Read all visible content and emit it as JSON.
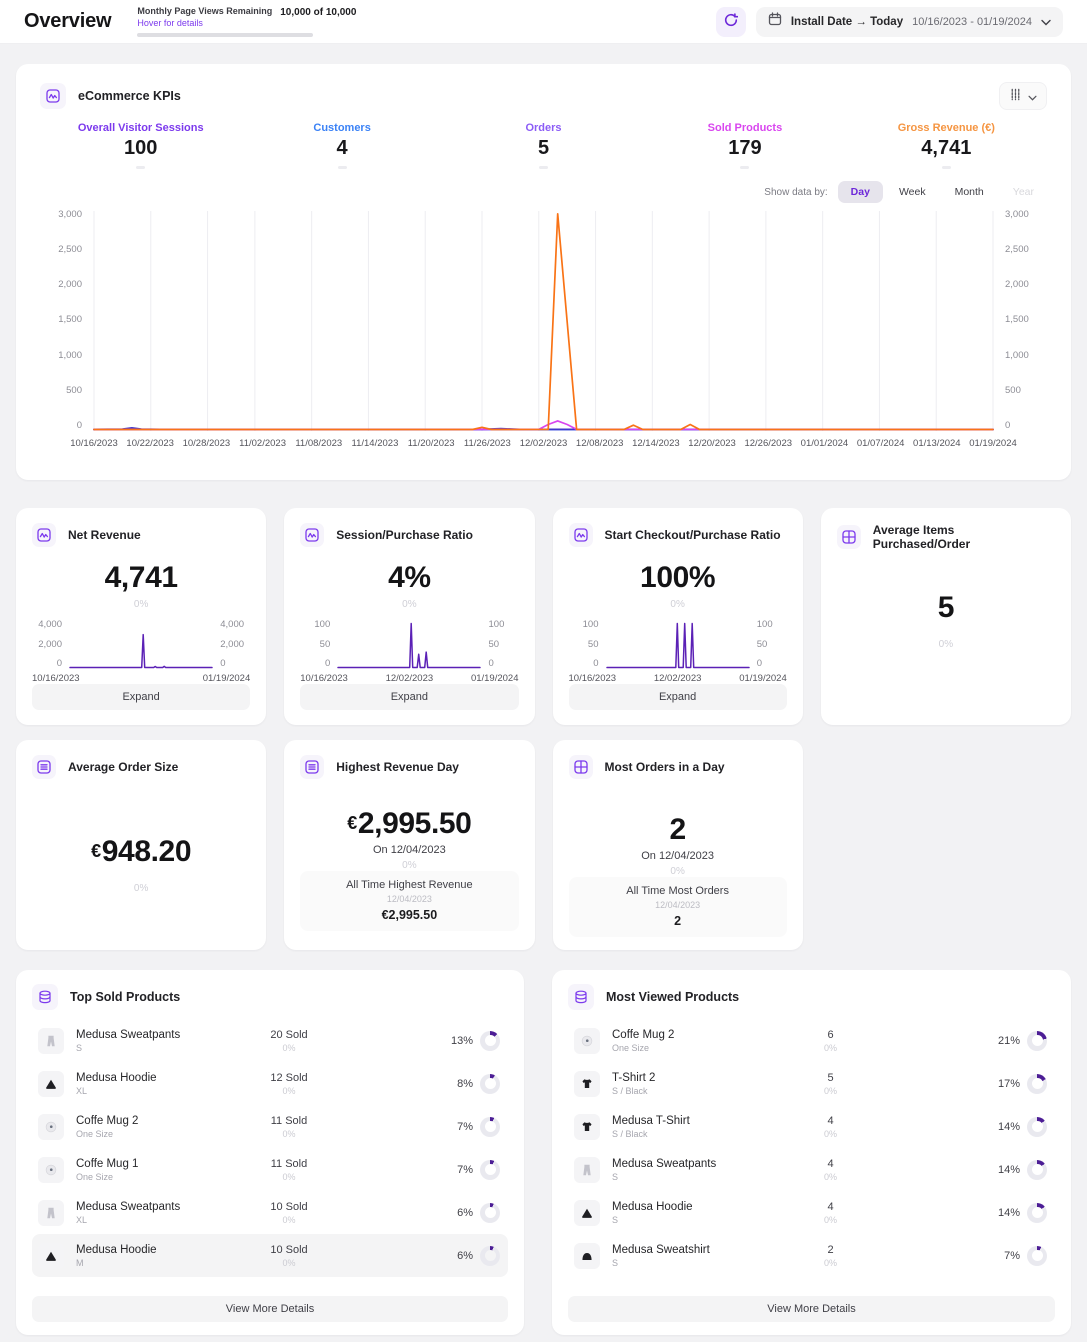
{
  "header": {
    "title": "Overview",
    "page_views": {
      "label": "Monthly Page Views Remaining",
      "hover": "Hover for details",
      "value": "10,000 of 10,000",
      "progress_pct": 100
    },
    "refresh_icon": "refresh-icon",
    "date_picker": {
      "preset": "Install Date → Today",
      "range": "10/16/2023 - 01/19/2024"
    }
  },
  "colors": {
    "accent_purple": "#6d28d9",
    "spark_line": "#5b21b6",
    "donut_arc": "#4c1d95"
  },
  "kpis_card": {
    "icon": "activity-icon",
    "title": "eCommerce KPIs",
    "show_data_by": {
      "label": "Show data by:",
      "options": [
        "Day",
        "Week",
        "Month",
        "Year"
      ],
      "active": "Day",
      "disabled": "Year"
    },
    "kpis": [
      {
        "label": "Overall Visitor Sessions",
        "value": "100",
        "color": "#7c3aed"
      },
      {
        "label": "Customers",
        "value": "4",
        "color": "#3b82f6"
      },
      {
        "label": "Orders",
        "value": "5",
        "color": "#8b5cf6"
      },
      {
        "label": "Sold Products",
        "value": "179",
        "color": "#d946ef"
      },
      {
        "label": "Gross Revenue (€)",
        "value": "4,741",
        "color": "#f59542"
      }
    ]
  },
  "chart_data": {
    "main_chart": {
      "type": "line",
      "title": "eCommerce KPIs over time (daily)",
      "x_ticks": [
        "10/16/2023",
        "10/22/2023",
        "10/28/2023",
        "11/02/2023",
        "11/08/2023",
        "11/14/2023",
        "11/20/2023",
        "11/26/2023",
        "12/02/2023",
        "12/08/2023",
        "12/14/2023",
        "12/20/2023",
        "12/26/2023",
        "01/01/2024",
        "01/07/2024",
        "01/13/2024",
        "01/19/2024"
      ],
      "y_ticks": [
        "3,000",
        "2,500",
        "2,000",
        "1,500",
        "1,000",
        "500",
        "0"
      ],
      "ylim": [
        0,
        3000
      ],
      "grid": "vertical",
      "legend": "none",
      "series": [
        {
          "name": "Orders",
          "color": "#8b5cf6",
          "points": [
            [
              "10/16/2023",
              0
            ],
            [
              "01/19/2024",
              0
            ]
          ]
        },
        {
          "name": "Customers",
          "color": "#3b82f6",
          "points": [
            [
              "10/16/2023",
              0
            ],
            [
              "01/19/2024",
              0
            ]
          ]
        },
        {
          "name": "Overall Visitor Sessions",
          "color": "#4338ca",
          "points": [
            [
              "10/16/2023",
              2
            ],
            [
              "10/19/2023",
              6
            ],
            [
              "10/20/2023",
              22
            ],
            [
              "10/21/2023",
              5
            ],
            [
              "10/23/2023",
              2
            ],
            [
              "11/26/2023",
              2
            ],
            [
              "11/28/2023",
              12
            ],
            [
              "11/30/2023",
              2
            ],
            [
              "01/19/2024",
              2
            ]
          ]
        },
        {
          "name": "Sold Products",
          "color": "#d946ef",
          "points": [
            [
              "10/16/2023",
              0
            ],
            [
              "12/02/2023",
              2
            ],
            [
              "12/03/2023",
              70
            ],
            [
              "12/04/2023",
              120
            ],
            [
              "12/05/2023",
              70
            ],
            [
              "12/06/2023",
              2
            ],
            [
              "01/19/2024",
              0
            ]
          ]
        },
        {
          "name": "Gross Revenue (€)",
          "color": "#f97316",
          "points": [
            [
              "10/16/2023",
              0
            ],
            [
              "11/25/2023",
              0
            ],
            [
              "11/26/2023",
              30
            ],
            [
              "11/27/2023",
              0
            ],
            [
              "12/03/2023",
              2
            ],
            [
              "12/04/2023",
              2995.5
            ],
            [
              "12/06/2023",
              0
            ],
            [
              "12/11/2023",
              0
            ],
            [
              "12/12/2023",
              60
            ],
            [
              "12/13/2023",
              0
            ],
            [
              "12/17/2023",
              0
            ],
            [
              "12/18/2023",
              70
            ],
            [
              "12/19/2023",
              0
            ],
            [
              "01/19/2024",
              0
            ]
          ]
        }
      ]
    },
    "net_revenue_spark": {
      "type": "line",
      "ylim": [
        0,
        4000
      ],
      "y_ticks": [
        "4,000",
        "2,000",
        "0"
      ],
      "x_labels": [
        "10/16/2023",
        "01/19/2024"
      ],
      "series": [
        {
          "name": "Net Revenue",
          "color": "#5b21b6",
          "points": [
            [
              "10/16/2023",
              0
            ],
            [
              "12/03/2023",
              0
            ],
            [
              "12/04/2023",
              2995
            ],
            [
              "12/05/2023",
              0
            ],
            [
              "12/11/2023",
              0
            ],
            [
              "12/12/2023",
              90
            ],
            [
              "12/13/2023",
              0
            ],
            [
              "12/17/2023",
              0
            ],
            [
              "12/18/2023",
              100
            ],
            [
              "12/19/2023",
              0
            ],
            [
              "01/19/2024",
              0
            ]
          ]
        }
      ]
    },
    "session_ratio_spark": {
      "type": "line",
      "ylim": [
        0,
        100
      ],
      "y_ticks": [
        "100",
        "50",
        "0"
      ],
      "x_labels": [
        "10/16/2023",
        "12/02/2023",
        "01/19/2024"
      ],
      "series": [
        {
          "name": "Session/Purchase Ratio",
          "color": "#5b21b6",
          "points": [
            [
              "10/16/2023",
              0
            ],
            [
              "12/03/2023",
              0
            ],
            [
              "12/04/2023",
              100
            ],
            [
              "12/05/2023",
              0
            ],
            [
              "12/08/2023",
              0
            ],
            [
              "12/09/2023",
              30
            ],
            [
              "12/10/2023",
              0
            ],
            [
              "12/13/2023",
              0
            ],
            [
              "12/14/2023",
              35
            ],
            [
              "12/15/2023",
              0
            ],
            [
              "01/19/2024",
              0
            ]
          ]
        }
      ]
    },
    "checkout_ratio_spark": {
      "type": "line",
      "ylim": [
        0,
        100
      ],
      "y_ticks": [
        "100",
        "50",
        "0"
      ],
      "x_labels": [
        "10/16/2023",
        "12/02/2023",
        "01/19/2024"
      ],
      "series": [
        {
          "name": "Start Checkout/Purchase Ratio",
          "color": "#5b21b6",
          "points": [
            [
              "10/16/2023",
              0
            ],
            [
              "12/01/2023",
              0
            ],
            [
              "12/02/2023",
              100
            ],
            [
              "12/03/2023",
              0
            ],
            [
              "12/06/2023",
              0
            ],
            [
              "12/07/2023",
              100
            ],
            [
              "12/08/2023",
              0
            ],
            [
              "12/11/2023",
              0
            ],
            [
              "12/12/2023",
              100
            ],
            [
              "12/13/2023",
              0
            ],
            [
              "01/19/2024",
              0
            ]
          ]
        }
      ]
    }
  },
  "cards": {
    "net_revenue": {
      "icon": "activity-icon",
      "title": "Net Revenue",
      "value": "4,741",
      "change": "0%",
      "expand": "Expand"
    },
    "session_ratio": {
      "icon": "activity-icon",
      "title": "Session/Purchase Ratio",
      "value": "4%",
      "change": "0%",
      "expand": "Expand"
    },
    "checkout_ratio": {
      "icon": "activity-icon",
      "title": "Start Checkout/Purchase Ratio",
      "value": "100%",
      "change": "0%",
      "expand": "Expand"
    },
    "avg_items": {
      "icon": "grid-icon",
      "title": "Average Items Purchased/Order",
      "value": "5",
      "change": "0%"
    },
    "avg_order": {
      "icon": "list-icon",
      "title": "Average Order Size",
      "currency": "€",
      "value": "948.20",
      "change": "0%"
    },
    "highest_revenue": {
      "icon": "list-icon",
      "title": "Highest Revenue Day",
      "currency": "€",
      "value": "2,995.50",
      "date": "On 12/04/2023",
      "change": "0%",
      "all_time": {
        "label": "All Time Highest Revenue",
        "date": "12/04/2023",
        "value": "€2,995.50"
      }
    },
    "most_orders": {
      "icon": "grid-icon",
      "title": "Most Orders in a Day",
      "value": "2",
      "date": "On 12/04/2023",
      "change": "0%",
      "all_time": {
        "label": "All Time Most Orders",
        "date": "12/04/2023",
        "value": "2"
      }
    }
  },
  "top_sold": {
    "icon": "database-icon",
    "title": "Top Sold Products",
    "view_more_label": "View More Details",
    "rows": [
      {
        "icon": "sweatpants-icon",
        "name": "Medusa Sweatpants",
        "variant": "S",
        "count": "20 Sold",
        "change": "0%",
        "share_label": "13%",
        "share_pct": 13,
        "highlighted": false
      },
      {
        "icon": "hoodie-icon",
        "name": "Medusa Hoodie",
        "variant": "XL",
        "count": "12 Sold",
        "change": "0%",
        "share_label": "8%",
        "share_pct": 8,
        "highlighted": false
      },
      {
        "icon": "mug-icon",
        "name": "Coffe Mug 2",
        "variant": "One Size",
        "count": "11 Sold",
        "change": "0%",
        "share_label": "7%",
        "share_pct": 7,
        "highlighted": false
      },
      {
        "icon": "mug-icon",
        "name": "Coffe Mug 1",
        "variant": "One Size",
        "count": "11 Sold",
        "change": "0%",
        "share_label": "7%",
        "share_pct": 7,
        "highlighted": false
      },
      {
        "icon": "sweatpants-icon",
        "name": "Medusa Sweatpants",
        "variant": "XL",
        "count": "10 Sold",
        "change": "0%",
        "share_label": "6%",
        "share_pct": 6,
        "highlighted": false
      },
      {
        "icon": "hoodie-icon",
        "name": "Medusa Hoodie",
        "variant": "M",
        "count": "10 Sold",
        "change": "0%",
        "share_label": "6%",
        "share_pct": 6,
        "highlighted": true
      }
    ]
  },
  "most_viewed": {
    "icon": "database-icon",
    "title": "Most Viewed Products",
    "view_more_label": "View More Details",
    "rows": [
      {
        "icon": "mug-icon",
        "name": "Coffe Mug 2",
        "variant": "One Size",
        "count": "6",
        "change": "0%",
        "share_label": "21%",
        "share_pct": 21,
        "highlighted": false
      },
      {
        "icon": "tshirt-icon",
        "name": "T-Shirt 2",
        "variant": "S / Black",
        "count": "5",
        "change": "0%",
        "share_label": "17%",
        "share_pct": 17,
        "highlighted": false
      },
      {
        "icon": "tshirt-icon",
        "name": "Medusa T-Shirt",
        "variant": "S / Black",
        "count": "4",
        "change": "0%",
        "share_label": "14%",
        "share_pct": 14,
        "highlighted": false
      },
      {
        "icon": "sweatpants-icon",
        "name": "Medusa Sweatpants",
        "variant": "S",
        "count": "4",
        "change": "0%",
        "share_label": "14%",
        "share_pct": 14,
        "highlighted": false
      },
      {
        "icon": "hoodie-icon",
        "name": "Medusa Hoodie",
        "variant": "S",
        "count": "4",
        "change": "0%",
        "share_label": "14%",
        "share_pct": 14,
        "highlighted": false
      },
      {
        "icon": "sweatshirt-icon",
        "name": "Medusa Sweatshirt",
        "variant": "S",
        "count": "2",
        "change": "0%",
        "share_label": "7%",
        "share_pct": 7,
        "highlighted": false
      }
    ]
  }
}
